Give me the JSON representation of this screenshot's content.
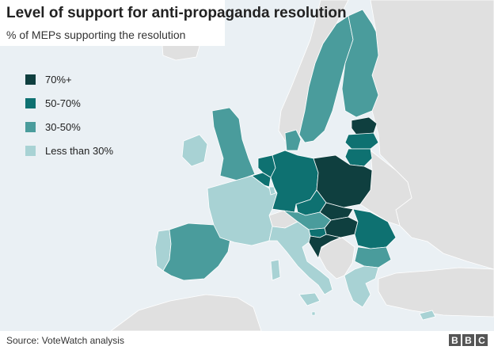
{
  "title": "Level of support for anti-propaganda resolution",
  "subtitle": "% of MEPs supporting the resolution",
  "legend": [
    {
      "label": "70%+",
      "color": "#0f3f3f"
    },
    {
      "label": "50-70%",
      "color": "#0e7171"
    },
    {
      "label": "30-50%",
      "color": "#4a9c9c"
    },
    {
      "label": "Less than 30%",
      "color": "#a8d2d4"
    }
  ],
  "colors": {
    "sea": "#eaf0f4",
    "non_eu_land": "#e0e0e0",
    "border": "#ffffff"
  },
  "countries": [
    {
      "name": "Estonia",
      "band": "70%+"
    },
    {
      "name": "Poland",
      "band": "70%+"
    },
    {
      "name": "Slovakia",
      "band": "70%+"
    },
    {
      "name": "Hungary",
      "band": "70%+"
    },
    {
      "name": "Croatia",
      "band": "70%+"
    },
    {
      "name": "Latvia",
      "band": "50-70%"
    },
    {
      "name": "Lithuania",
      "band": "50-70%"
    },
    {
      "name": "Germany",
      "band": "50-70%"
    },
    {
      "name": "Netherlands",
      "band": "50-70%"
    },
    {
      "name": "Belgium",
      "band": "50-70%"
    },
    {
      "name": "Czech Republic",
      "band": "50-70%"
    },
    {
      "name": "Romania",
      "band": "50-70%"
    },
    {
      "name": "Slovenia",
      "band": "50-70%"
    },
    {
      "name": "Sweden",
      "band": "30-50%"
    },
    {
      "name": "Finland",
      "band": "30-50%"
    },
    {
      "name": "Denmark",
      "band": "30-50%"
    },
    {
      "name": "United Kingdom",
      "band": "30-50%"
    },
    {
      "name": "Spain",
      "band": "30-50%"
    },
    {
      "name": "Austria",
      "band": "30-50%"
    },
    {
      "name": "Bulgaria",
      "band": "30-50%"
    },
    {
      "name": "Portugal",
      "band": "Less than 30%"
    },
    {
      "name": "Ireland",
      "band": "Less than 30%"
    },
    {
      "name": "France",
      "band": "Less than 30%"
    },
    {
      "name": "Luxembourg",
      "band": "Less than 30%"
    },
    {
      "name": "Italy",
      "band": "Less than 30%"
    },
    {
      "name": "Greece",
      "band": "Less than 30%"
    },
    {
      "name": "Cyprus",
      "band": "Less than 30%"
    },
    {
      "name": "Malta",
      "band": "Less than 30%"
    }
  ],
  "footer": {
    "source": "Source: VoteWatch analysis",
    "logo": [
      "B",
      "B",
      "C"
    ]
  }
}
